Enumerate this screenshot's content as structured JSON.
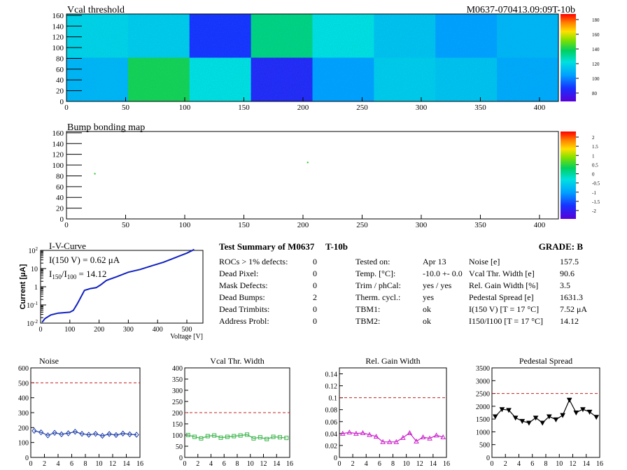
{
  "header": {
    "map_title": "Vcal threshold",
    "module_id": "M0637-070413.09:09T-10b",
    "bump_title": "Bump bonding map"
  },
  "maps": {
    "x_ticks": [
      0,
      50,
      100,
      150,
      200,
      250,
      300,
      350,
      400
    ],
    "y_ticks": [
      0,
      20,
      40,
      60,
      80,
      100,
      120,
      140,
      160
    ],
    "vcal_scale_ticks": [
      "80",
      "100",
      "120",
      "140",
      "160",
      "180"
    ],
    "bump_scale_ticks": [
      "-2",
      "-1.5",
      "-1",
      "-0.5",
      "0",
      "0.5",
      "1",
      "1.5",
      "2"
    ],
    "vcal_roc_levels": {
      "top": [
        0.42,
        0.4,
        0.15,
        0.55,
        0.45,
        0.38,
        0.3,
        0.35
      ],
      "bottom": [
        0.35,
        0.6,
        0.45,
        0.12,
        0.3,
        0.4,
        0.38,
        0.32
      ]
    },
    "bump_points": [
      [
        24,
        84
      ],
      [
        204,
        105
      ]
    ]
  },
  "iv": {
    "title": "I-V-Curve",
    "ylabel": "Current [μA]",
    "xlabel": "Voltage [V]",
    "x_ticks": [
      "0",
      "100",
      "200",
      "300",
      "400",
      "500"
    ],
    "annotation_i150": "I(150 V) = 0.62 μA",
    "annotation_ratio_label": "I",
    "annotation_ratio_sub1": "150",
    "annotation_ratio_sep": "/I",
    "annotation_ratio_sub2": "100",
    "annotation_ratio_value": " =  14.12"
  },
  "summary": {
    "title": "Test Summary of M0637",
    "tag": "T-10b",
    "grade": "GRADE:  B",
    "left": [
      {
        "label": "ROCs > 1% defects:",
        "value": "0"
      },
      {
        "label": "Dead Pixel:",
        "value": "0"
      },
      {
        "label": "Mask Defects:",
        "value": "0"
      },
      {
        "label": "Dead Bumps:",
        "value": "2"
      },
      {
        "label": "Dead Trimbits:",
        "value": "0"
      },
      {
        "label": "Address Probl:",
        "value": "0"
      }
    ],
    "mid": [
      {
        "label": "Tested on:",
        "value": "Apr 13"
      },
      {
        "label": "Temp. [°C]:",
        "value": "-10.0 +- 0.0"
      },
      {
        "label": "Trim / phCal:",
        "value": "yes / yes"
      },
      {
        "label": "Therm. cycl.:",
        "value": "yes"
      },
      {
        "label": "TBM1:",
        "value": "ok"
      },
      {
        "label": "TBM2:",
        "value": "ok"
      }
    ],
    "right": [
      {
        "label": "Noise [e]",
        "value": "157.5"
      },
      {
        "label": "Vcal Thr. Width [e]",
        "value": "90.6"
      },
      {
        "label": "Rel. Gain Width [%]",
        "value": "3.5"
      },
      {
        "label": "Pedestal Spread [e]",
        "value": "1631.3"
      },
      {
        "label": "I(150 V) [T = 17 °C]",
        "value": "7.52 μA"
      },
      {
        "label": "I150/I100  [T = 17 °C]",
        "value": "14.12"
      }
    ]
  },
  "chart_data": [
    {
      "type": "line",
      "title": "Noise",
      "x": [
        0,
        1,
        2,
        3,
        4,
        5,
        6,
        7,
        8,
        9,
        10,
        11,
        12,
        13,
        14,
        15
      ],
      "values": [
        178,
        168,
        148,
        165,
        155,
        162,
        172,
        158,
        152,
        158,
        145,
        157,
        150,
        160,
        155,
        152
      ],
      "ylim": [
        0,
        600
      ],
      "y_ticks": [
        "0",
        "100",
        "200",
        "300",
        "400",
        "500",
        "600"
      ],
      "x_ticks": [
        "0",
        "2",
        "4",
        "6",
        "8",
        "10",
        "12",
        "14",
        "16"
      ],
      "reference": 500,
      "color": "#1f3fa8",
      "marker": "diamond"
    },
    {
      "type": "line",
      "title": "Vcal Thr. Width",
      "x": [
        0,
        1,
        2,
        3,
        4,
        5,
        6,
        7,
        8,
        9,
        10,
        11,
        12,
        13,
        14,
        15
      ],
      "values": [
        100,
        92,
        85,
        95,
        98,
        88,
        92,
        95,
        98,
        102,
        85,
        90,
        82,
        92,
        90,
        87
      ],
      "ylim": [
        0,
        400
      ],
      "y_ticks": [
        "0",
        "50",
        "100",
        "150",
        "200",
        "250",
        "300",
        "350",
        "400"
      ],
      "x_ticks": [
        "0",
        "2",
        "4",
        "6",
        "8",
        "10",
        "12",
        "14",
        "16"
      ],
      "reference": 200,
      "color": "#3cb44b",
      "marker": "square"
    },
    {
      "type": "line",
      "title": "Rel. Gain Width",
      "x": [
        0,
        1,
        2,
        3,
        4,
        5,
        6,
        7,
        8,
        9,
        10,
        11,
        12,
        13,
        14,
        15
      ],
      "values": [
        0.04,
        0.042,
        0.04,
        0.041,
        0.038,
        0.035,
        0.026,
        0.026,
        0.026,
        0.033,
        0.041,
        0.027,
        0.034,
        0.032,
        0.037,
        0.034
      ],
      "ylim": [
        0,
        0.15
      ],
      "y_ticks": [
        "0",
        "0.02",
        "0.04",
        "0.06",
        "0.08",
        "0.1",
        "0.12",
        "0.14"
      ],
      "x_ticks": [
        "0",
        "2",
        "4",
        "6",
        "8",
        "10",
        "12",
        "14",
        "16"
      ],
      "reference": 0.1,
      "color": "#cc22cc",
      "marker": "triangle"
    },
    {
      "type": "line",
      "title": "Pedestal Spread",
      "x": [
        0,
        1,
        2,
        3,
        4,
        5,
        6,
        7,
        8,
        9,
        10,
        11,
        12,
        13,
        14,
        15
      ],
      "values": [
        1600,
        1880,
        1850,
        1550,
        1420,
        1350,
        1550,
        1350,
        1600,
        1480,
        1650,
        2250,
        1750,
        1880,
        1780,
        1580
      ],
      "ylim": [
        0,
        3500
      ],
      "y_ticks": [
        "0",
        "500",
        "1000",
        "1500",
        "2000",
        "2500",
        "3000",
        "3500"
      ],
      "x_ticks": [
        "0",
        "2",
        "4",
        "6",
        "8",
        "10",
        "12",
        "14",
        "16"
      ],
      "reference": 2500,
      "color": "#000000",
      "marker": "triangle-down"
    }
  ]
}
